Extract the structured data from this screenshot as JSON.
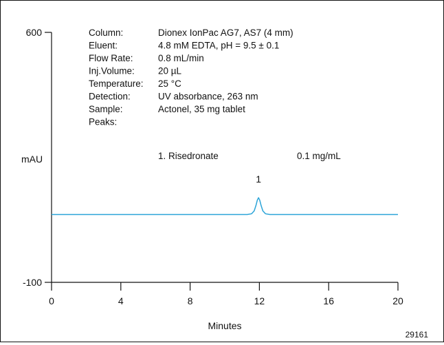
{
  "chart_data": {
    "type": "line",
    "xlabel": "Minutes",
    "ylabel": "mAU",
    "xlim": [
      0,
      20
    ],
    "ylim": [
      -100,
      600
    ],
    "x_ticks": [
      0,
      4,
      8,
      12,
      16,
      20
    ],
    "y_ticks": [
      600,
      -100
    ],
    "grid": false,
    "series": [
      {
        "color": "#2ba4d8",
        "points": [
          [
            0,
            90
          ],
          [
            11.3,
            90
          ],
          [
            11.55,
            92
          ],
          [
            11.7,
            100
          ],
          [
            11.8,
            115
          ],
          [
            11.88,
            130
          ],
          [
            11.95,
            137
          ],
          [
            12.02,
            130
          ],
          [
            12.1,
            115
          ],
          [
            12.2,
            100
          ],
          [
            12.35,
            92
          ],
          [
            12.6,
            90
          ],
          [
            20,
            90
          ]
        ]
      }
    ],
    "peak_annotations": [
      {
        "label": "1",
        "x": 11.95,
        "y": 180
      }
    ],
    "conditions": [
      {
        "label": "Column:",
        "value": "Dionex IonPac AG7, AS7 (4 mm)"
      },
      {
        "label": "Eluent:",
        "value": "4.8 mM EDTA, pH = 9.5 ± 0.1"
      },
      {
        "label": "Flow Rate:",
        "value": "0.8 mL/min"
      },
      {
        "label": "Inj.Volume:",
        "value": "20 µL"
      },
      {
        "label": "Temperature:",
        "value": "25 °C"
      },
      {
        "label": "Detection:",
        "value": "UV absorbance, 263 nm"
      },
      {
        "label": "Sample:",
        "value": "Actonel, 35 mg tablet"
      },
      {
        "label": "Peaks:",
        "value": ""
      }
    ],
    "peaks_list": [
      {
        "name": "1. Risedronate",
        "amount": "0.1 mg/mL"
      }
    ],
    "figure_number": "29161"
  }
}
